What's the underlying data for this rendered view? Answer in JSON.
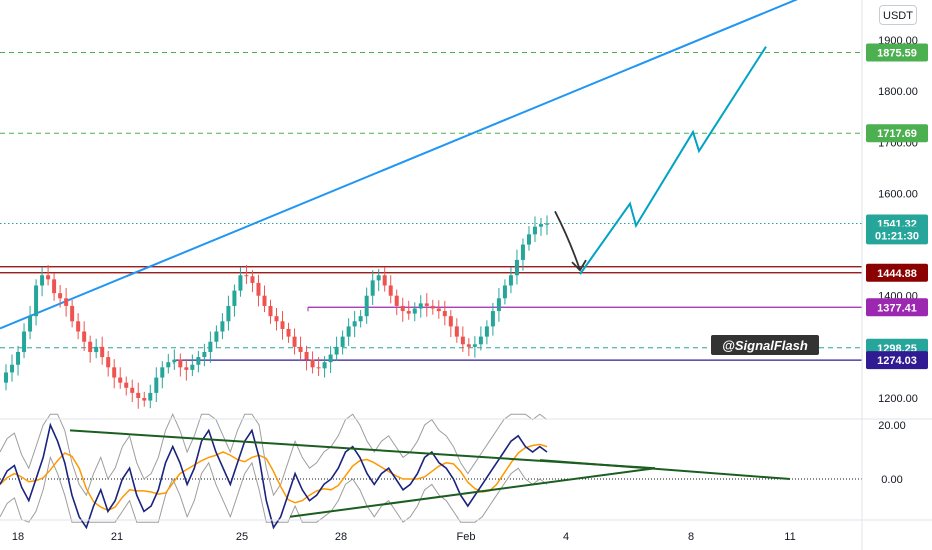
{
  "currency_label": "USDT",
  "watermark": "@SignalFlash",
  "chart_data": [
    {
      "type": "candlestick",
      "ylim": [
        1140,
        1960
      ],
      "y_ticks": [
        "1900.00",
        "1800.00",
        "1700.00",
        "1600.00",
        "1400.00",
        "1200.00"
      ],
      "y_tick_values": [
        1900,
        1800,
        1700,
        1600,
        1400,
        1200
      ],
      "x_ticks": [
        "18",
        "21",
        "25",
        "28",
        "Feb",
        "4",
        "8",
        "11"
      ],
      "grid": false,
      "price_tags": [
        {
          "label": "1875.59",
          "value": 1875.59,
          "color": "#4caf50",
          "style": "dashed"
        },
        {
          "label": "1717.69",
          "value": 1717.69,
          "color": "#4caf50",
          "style": "dashed"
        },
        {
          "label": "1541.32",
          "value": 1541.32,
          "color": "#26a69a",
          "style": "dotted"
        },
        {
          "label": "01:21:30",
          "value": 1518,
          "color": "#26a69a",
          "style": "none"
        },
        {
          "label": "1444.88",
          "value": 1444.88,
          "color": "#8b0000",
          "style": "solid"
        },
        {
          "label": "1377.41",
          "value": 1377.41,
          "color": "#9c27b0",
          "style": "solid"
        },
        {
          "label": "1298.25",
          "value": 1298.25,
          "color": "#26a69a",
          "style": "dashed"
        },
        {
          "label": "1274.03",
          "value": 1274.03,
          "color": "#311b92",
          "style": "solid"
        }
      ],
      "trendline": {
        "color": "#2196f3",
        "from": 1336,
        "to": 1990
      },
      "projection": {
        "color": "#00a3c4",
        "values": [
          1442,
          1580,
          1537,
          1720,
          1683,
          1887
        ]
      },
      "arrow": {
        "color": "#333333",
        "from": 1565,
        "to": 1450
      },
      "candle_colors": {
        "up": "#26a69a",
        "down": "#ef5350"
      }
    },
    {
      "type": "line",
      "ylim": [
        -15,
        25
      ],
      "y_ticks": [
        "20.00",
        "0.00"
      ],
      "y_tick_values": [
        20,
        0
      ],
      "zero_line": true,
      "series_colors": {
        "oscillator": "#1a237e",
        "signal": "#ff9800",
        "bands": "#9e9e9e",
        "triangle": "#1b5e20"
      }
    }
  ]
}
